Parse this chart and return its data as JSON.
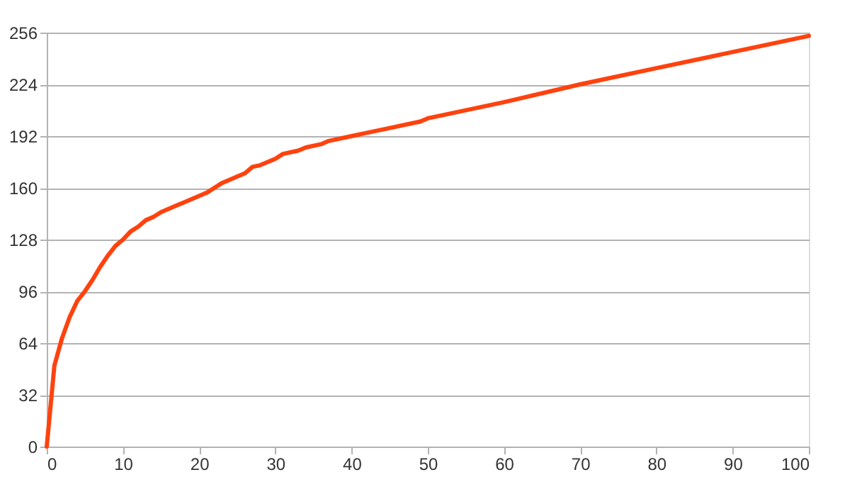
{
  "chart_data": {
    "type": "line",
    "x": [
      0,
      1,
      2,
      3,
      4,
      5,
      6,
      7,
      8,
      9,
      10,
      11,
      12,
      13,
      14,
      15,
      17,
      19,
      21,
      22,
      23,
      25,
      26,
      27,
      28,
      30,
      31,
      33,
      34,
      36,
      37,
      40,
      45,
      49,
      50,
      51,
      60,
      70,
      80,
      90,
      100
    ],
    "series": [
      {
        "color": "#ff420e",
        "values": [
          0,
          50,
          67,
          80,
          90,
          96,
          103,
          111,
          118,
          124,
          128,
          133,
          136,
          140,
          142,
          145,
          149,
          153,
          157,
          160,
          163,
          167,
          169,
          173,
          174,
          178,
          181,
          183,
          185,
          187,
          189,
          192,
          197,
          201,
          203,
          204,
          213,
          224,
          234,
          244,
          254
        ]
      }
    ],
    "xlim": [
      0,
      100
    ],
    "xticks": [
      0,
      10,
      20,
      30,
      40,
      50,
      60,
      70,
      80,
      90,
      100
    ],
    "ylim": [
      0,
      256
    ],
    "yticks": [
      0,
      32,
      64,
      96,
      128,
      160,
      192,
      224,
      256
    ],
    "grid": "y",
    "marker": "none",
    "line_style": "solid"
  }
}
